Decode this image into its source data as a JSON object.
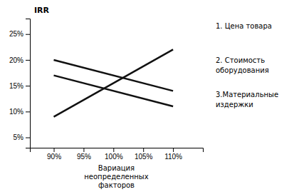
{
  "chart_data": {
    "type": "line",
    "x": [
      90,
      110
    ],
    "series": [
      {
        "color": "#111111",
        "values": [
          9,
          22
        ]
      },
      {
        "color": "#111111",
        "values": [
          20,
          14
        ]
      },
      {
        "color": "#111111",
        "values": [
          17,
          11
        ]
      }
    ],
    "xlim": [
      86,
      115
    ],
    "ylim": [
      3,
      28
    ],
    "xticks": [
      {
        "value": 90,
        "label": "90%"
      },
      {
        "value": 95,
        "label": "95%"
      },
      {
        "value": 100,
        "label": "100%"
      },
      {
        "value": 105,
        "label": "105%"
      },
      {
        "value": 110,
        "label": "110%"
      }
    ],
    "yticks": [
      {
        "value": 5,
        "label": "5%"
      },
      {
        "value": 10,
        "label": "10%"
      },
      {
        "value": 15,
        "label": "15%"
      },
      {
        "value": 20,
        "label": "20%"
      },
      {
        "value": 25,
        "label": "25%"
      }
    ],
    "ylabel": "IRR",
    "xlabel": "Вариация\nнеопределенных\nфакторов",
    "annotations": [
      "1.  Цена товара",
      "2.  Стоимость\nоборудования",
      "3.Материальные\nиздержки"
    ]
  }
}
